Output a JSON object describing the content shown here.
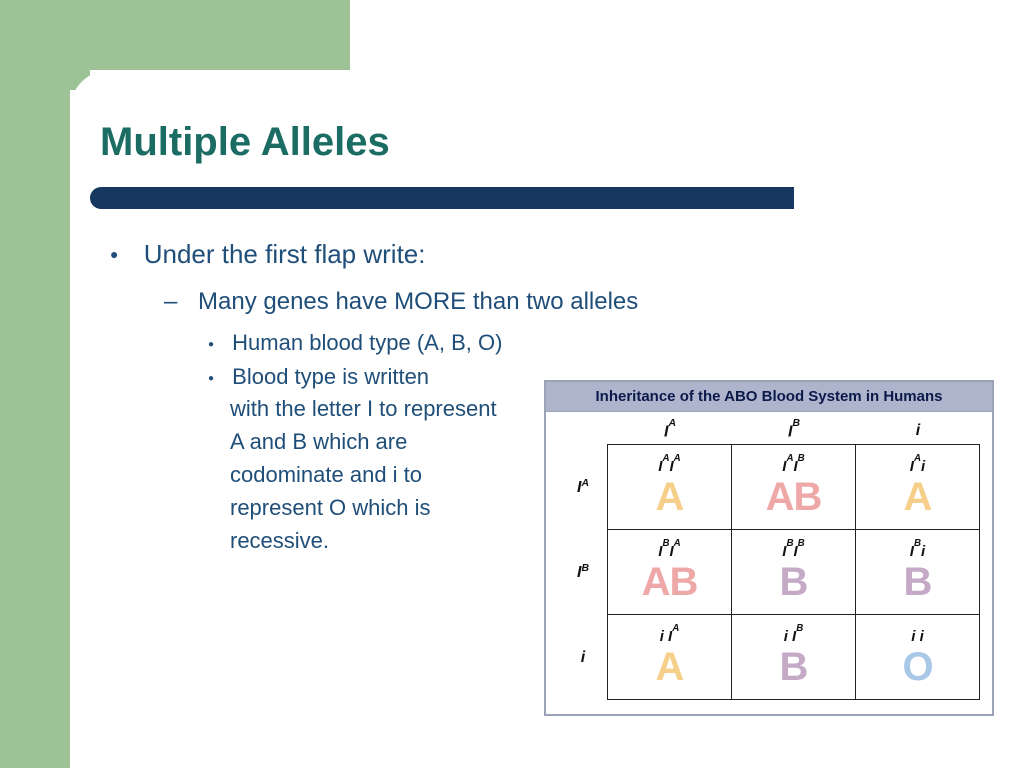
{
  "colors": {
    "accent_green": "#9cc295",
    "title_teal": "#1b6d63",
    "rule_navy": "#16375f",
    "text_navy": "#1f4e79",
    "fig_header_bg": "#aeb4cc",
    "fig_border": "#9aa2b5",
    "pheno_A": "#f6d08a",
    "pheno_AB": "#efa8a8",
    "pheno_B": "#c5aac8",
    "pheno_O": "#a9c7e6"
  },
  "title": "Multiple Alleles",
  "bullets": {
    "l1": "Under the first flap write:",
    "l2": "Many genes have MORE than two alleles",
    "l3a": "Human blood type (A, B, O)",
    "l3b_lead": "Blood type is written",
    "l3b_rest": "with the letter I to represent\nA and B which are codominate and i to represent O which is recessive."
  },
  "figure": {
    "title": "Inheritance of the ABO Blood System in Humans",
    "col_alleles": [
      "I<sup>A</sup>",
      "I<sup>B</sup>",
      "i"
    ],
    "row_alleles": [
      "I<sup>A</sup>",
      "I<sup>B</sup>",
      "i"
    ],
    "cells": [
      [
        {
          "geno": "I<sup>A</sup>I<sup>A</sup>",
          "pheno": "A",
          "color_key": "pheno_A"
        },
        {
          "geno": "I<sup>A</sup>I<sup>B</sup>",
          "pheno": "AB",
          "color_key": "pheno_AB"
        },
        {
          "geno": "I<sup>A</sup>i",
          "pheno": "A",
          "color_key": "pheno_A"
        }
      ],
      [
        {
          "geno": "I<sup>B</sup>I<sup>A</sup>",
          "pheno": "AB",
          "color_key": "pheno_AB"
        },
        {
          "geno": "I<sup>B</sup>I<sup>B</sup>",
          "pheno": "B",
          "color_key": "pheno_B"
        },
        {
          "geno": "I<sup>B</sup>i",
          "pheno": "B",
          "color_key": "pheno_B"
        }
      ],
      [
        {
          "geno": "i I<sup>A</sup>",
          "pheno": "A",
          "color_key": "pheno_A"
        },
        {
          "geno": "i I<sup>B</sup>",
          "pheno": "B",
          "color_key": "pheno_B"
        },
        {
          "geno": "i i",
          "pheno": "O",
          "color_key": "pheno_O"
        }
      ]
    ]
  }
}
